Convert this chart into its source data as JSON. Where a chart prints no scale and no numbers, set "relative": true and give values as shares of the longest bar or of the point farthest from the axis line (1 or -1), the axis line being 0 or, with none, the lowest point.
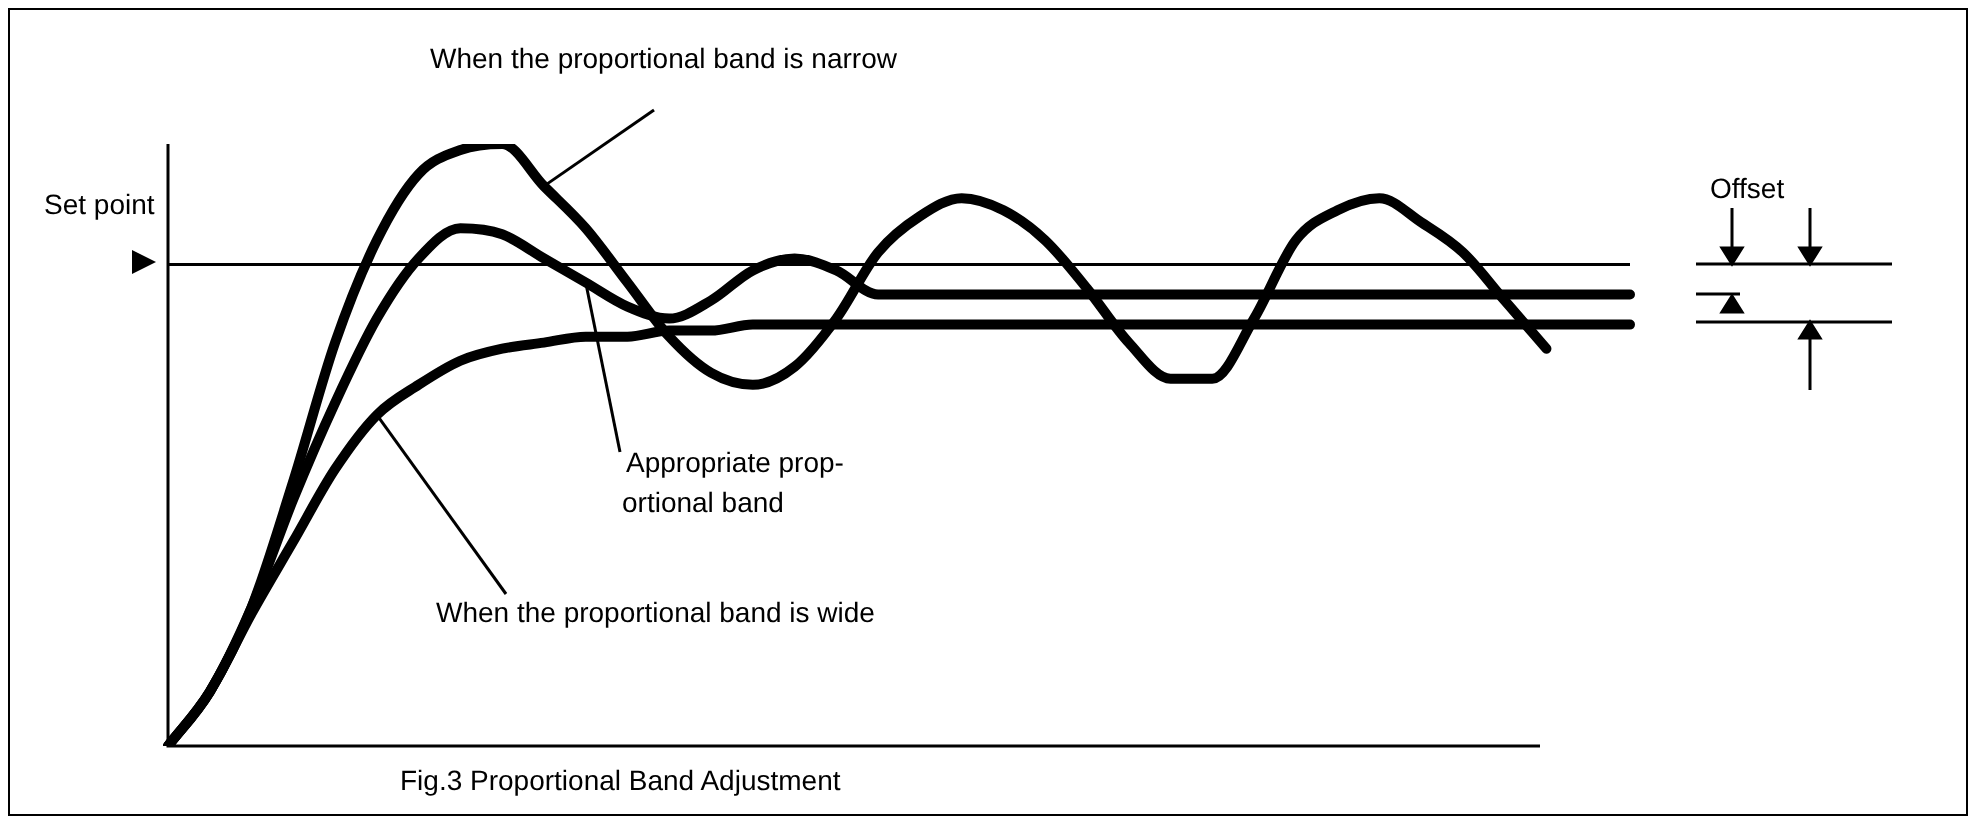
{
  "chart_data": {
    "type": "line",
    "title": "Fig.3 Proportional Band Adjustment",
    "annotations": [
      "When the proportional band is narrow",
      "Appropriate prop-\nortional band",
      "When the proportional band is wide",
      "Offset"
    ],
    "relative": true,
    "marker": "none",
    "legend": false,
    "categories": [
      null,
      null,
      null,
      null,
      null,
      null,
      null,
      null,
      null,
      null,
      null,
      null,
      null,
      null,
      null,
      null,
      null,
      null,
      null,
      null,
      null,
      null,
      null,
      null,
      null,
      null,
      null,
      null,
      null,
      null,
      null,
      null,
      null,
      null,
      null,
      null
    ],
    "series": [
      {
        "color": "#000000",
        "values": [
          0,
          0.09,
          0.23,
          0.44,
          0.67,
          0.84,
          0.95,
          0.99,
          1.0,
          0.93,
          0.86,
          0.77,
          0.68,
          0.62,
          0.6,
          0.63,
          0.71,
          0.82,
          0.88,
          0.91,
          0.89,
          0.84,
          0.76,
          0.67,
          0.61,
          0.61,
          0.71,
          0.84,
          0.89,
          0.91,
          0.87,
          0.82,
          0.74,
          0.66,
          null,
          null
        ]
      },
      {
        "color": "#000000",
        "values": [
          0,
          0.09,
          0.23,
          0.41,
          0.57,
          0.71,
          0.81,
          0.86,
          0.85,
          0.81,
          0.77,
          0.73,
          0.71,
          0.74,
          0.79,
          0.81,
          0.79,
          0.75,
          0.75,
          0.75,
          0.75,
          0.75,
          0.75,
          0.75,
          0.75,
          0.75,
          0.75,
          0.75,
          0.75,
          0.75,
          0.75,
          0.75,
          0.75,
          0.75,
          0.75,
          0.75
        ]
      },
      {
        "color": "#000000",
        "values": [
          0,
          0.09,
          0.22,
          0.34,
          0.46,
          0.55,
          0.6,
          0.64,
          0.66,
          0.67,
          0.68,
          0.68,
          0.69,
          0.69,
          0.7,
          0.7,
          0.7,
          0.7,
          0.7,
          0.7,
          0.7,
          0.7,
          0.7,
          0.7,
          0.7,
          0.7,
          0.7,
          0.7,
          0.7,
          0.7,
          0.7,
          0.7,
          0.7,
          0.7,
          0.7,
          0.7
        ]
      }
    ],
    "ref_lines": [
      {
        "axis": "y",
        "value": 0.8,
        "label": "Set point",
        "color": "#000000"
      }
    ]
  }
}
